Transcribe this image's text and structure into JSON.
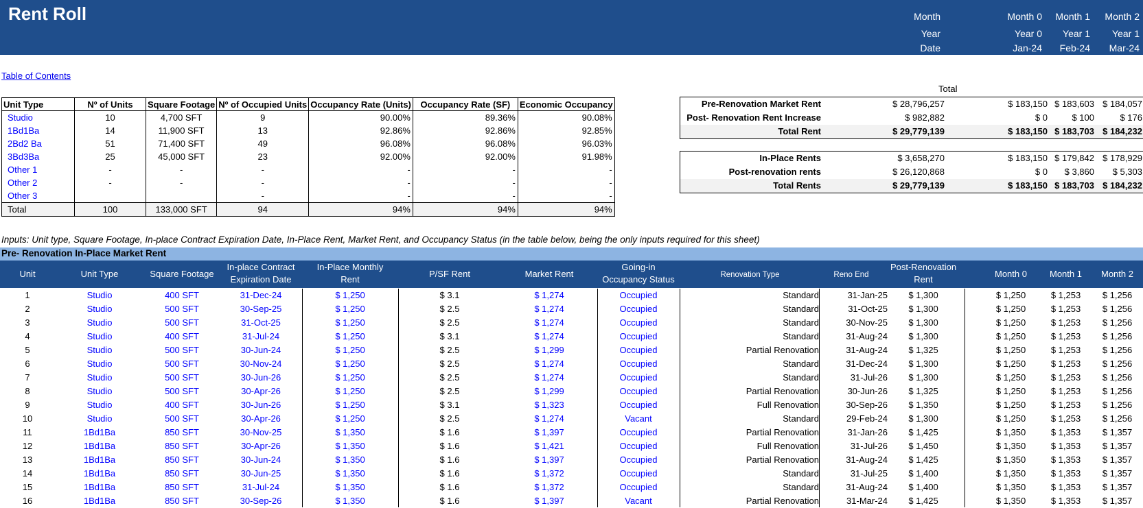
{
  "title": "Rent Roll",
  "header_labels": {
    "month": "Month",
    "year": "Year",
    "date": "Date"
  },
  "header_cols": [
    {
      "month": "Month 0",
      "year": "Year 0",
      "date": "Jan-24"
    },
    {
      "month": "Month 1",
      "year": "Year 1",
      "date": "Feb-24"
    },
    {
      "month": "Month 2",
      "year": "Year 1",
      "date": "Mar-24"
    }
  ],
  "toc_link": "Table of Contents",
  "summary": {
    "headers": [
      "Unit Type",
      "Nº of Units",
      "Square Footage",
      "Nº of Occupied Units",
      "Occupancy Rate (Units)",
      "Occupancy Rate (SF)",
      "Economic Occupancy"
    ],
    "rows": [
      [
        "Studio",
        "10",
        "4,700 SFT",
        "9",
        "90.00%",
        "89.36%",
        "90.08%"
      ],
      [
        "1Bd1Ba",
        "14",
        "11,900 SFT",
        "13",
        "92.86%",
        "92.86%",
        "92.85%"
      ],
      [
        "2Bd2 Ba",
        "51",
        "71,400 SFT",
        "49",
        "96.08%",
        "96.08%",
        "96.03%"
      ],
      [
        "3Bd3Ba",
        "25",
        "45,000 SFT",
        "23",
        "92.00%",
        "92.00%",
        "91.98%"
      ],
      [
        "Other 1",
        "-",
        "-",
        "-",
        "-",
        "-",
        "-"
      ],
      [
        "Other 2",
        "-",
        "-",
        "-",
        "-",
        "-",
        "-"
      ],
      [
        "Other 3",
        "",
        "",
        "-",
        "-",
        "-",
        "-"
      ]
    ],
    "total": [
      "Total",
      "100",
      "133,000 SFT",
      "94",
      "94%",
      "94%",
      "94%"
    ]
  },
  "total_label": "Total",
  "rent_box1": [
    {
      "label": "Pre-Renovation Market Rent",
      "total": "$ 28,796,257",
      "m0": "$ 183,150",
      "m1": "$ 183,603",
      "m2": "$ 184,057"
    },
    {
      "label": "Post- Renovation Rent Increase",
      "total": "$ 982,882",
      "m0": "$ 0",
      "m1": "$ 100",
      "m2": "$ 176"
    },
    {
      "label": "Total Rent",
      "total": "$ 29,779,139",
      "m0": "$ 183,150",
      "m1": "$ 183,703",
      "m2": "$ 184,232"
    }
  ],
  "rent_box2": [
    {
      "label": "In-Place Rents",
      "total": "$ 3,658,270",
      "m0": "$ 183,150",
      "m1": "$ 179,842",
      "m2": "$ 178,929"
    },
    {
      "label": "Post-renovation rents",
      "total": "$ 26,120,868",
      "m0": "$ 0",
      "m1": "$ 3,860",
      "m2": "$ 5,303"
    },
    {
      "label": "Total Rents",
      "total": "$ 29,779,139",
      "m0": "$ 183,150",
      "m1": "$ 183,703",
      "m2": "$ 184,232"
    }
  ],
  "inputs_note": "Inputs: Unit type, Square Footage, In-place Contract Expiration Date, In-Place Rent, Market Rent, and Occupancy Status (in the table below, being the only inputs required for this sheet)",
  "section_title": "Pre- Renovation In-Place Market Rent",
  "main_headers": {
    "unit": "Unit",
    "unit_type": "Unit Type",
    "sqft": "Square Footage",
    "expiry_1": "In-place Contract",
    "expiry_2": "Expiration Date",
    "inplace_1": "In-Place Monthly",
    "inplace_2": "Rent",
    "psf": "P/SF Rent",
    "market": "Market Rent",
    "status_1": "Going-in",
    "status_2": "Occupancy Status",
    "reno_type": "Renovation Type",
    "reno_end": "Reno End",
    "post_1": "Post-Renovation",
    "post_2": "Rent",
    "m0": "Month 0",
    "m1": "Month 1",
    "m2": "Month 2"
  },
  "units": [
    [
      "1",
      "Studio",
      "400 SFT",
      "31-Dec-24",
      "$ 1,250",
      "$ 3.1",
      "$ 1,274",
      "Occupied",
      "Standard",
      "31-Jan-25",
      "$ 1,300",
      "$ 1,250",
      "$ 1,253",
      "$ 1,256"
    ],
    [
      "2",
      "Studio",
      "500 SFT",
      "30-Sep-25",
      "$ 1,250",
      "$ 2.5",
      "$ 1,274",
      "Occupied",
      "Standard",
      "31-Oct-25",
      "$ 1,300",
      "$ 1,250",
      "$ 1,253",
      "$ 1,256"
    ],
    [
      "3",
      "Studio",
      "500 SFT",
      "31-Oct-25",
      "$ 1,250",
      "$ 2.5",
      "$ 1,274",
      "Occupied",
      "Standard",
      "30-Nov-25",
      "$ 1,300",
      "$ 1,250",
      "$ 1,253",
      "$ 1,256"
    ],
    [
      "4",
      "Studio",
      "400 SFT",
      "31-Jul-24",
      "$ 1,250",
      "$ 3.1",
      "$ 1,274",
      "Occupied",
      "Standard",
      "31-Aug-24",
      "$ 1,300",
      "$ 1,250",
      "$ 1,253",
      "$ 1,256"
    ],
    [
      "5",
      "Studio",
      "500 SFT",
      "30-Jun-24",
      "$ 1,250",
      "$ 2.5",
      "$ 1,299",
      "Occupied",
      "Partial Renovation",
      "31-Aug-24",
      "$ 1,325",
      "$ 1,250",
      "$ 1,253",
      "$ 1,256"
    ],
    [
      "6",
      "Studio",
      "500 SFT",
      "30-Nov-24",
      "$ 1,250",
      "$ 2.5",
      "$ 1,274",
      "Occupied",
      "Standard",
      "31-Dec-24",
      "$ 1,300",
      "$ 1,250",
      "$ 1,253",
      "$ 1,256"
    ],
    [
      "7",
      "Studio",
      "500 SFT",
      "30-Jun-26",
      "$ 1,250",
      "$ 2.5",
      "$ 1,274",
      "Occupied",
      "Standard",
      "31-Jul-26",
      "$ 1,300",
      "$ 1,250",
      "$ 1,253",
      "$ 1,256"
    ],
    [
      "8",
      "Studio",
      "500 SFT",
      "30-Apr-26",
      "$ 1,250",
      "$ 2.5",
      "$ 1,299",
      "Occupied",
      "Partial Renovation",
      "30-Jun-26",
      "$ 1,325",
      "$ 1,250",
      "$ 1,253",
      "$ 1,256"
    ],
    [
      "9",
      "Studio",
      "400 SFT",
      "30-Jun-26",
      "$ 1,250",
      "$ 3.1",
      "$ 1,323",
      "Occupied",
      "Full Renovation",
      "30-Sep-26",
      "$ 1,350",
      "$ 1,250",
      "$ 1,253",
      "$ 1,256"
    ],
    [
      "10",
      "Studio",
      "500 SFT",
      "30-Apr-26",
      "$ 1,250",
      "$ 2.5",
      "$ 1,274",
      "Vacant",
      "Standard",
      "29-Feb-24",
      "$ 1,300",
      "$ 1,250",
      "$ 1,253",
      "$ 1,256"
    ],
    [
      "11",
      "1Bd1Ba",
      "850 SFT",
      "30-Nov-25",
      "$ 1,350",
      "$ 1.6",
      "$ 1,397",
      "Occupied",
      "Partial Renovation",
      "31-Jan-26",
      "$ 1,425",
      "$ 1,350",
      "$ 1,353",
      "$ 1,357"
    ],
    [
      "12",
      "1Bd1Ba",
      "850 SFT",
      "30-Apr-26",
      "$ 1,350",
      "$ 1.6",
      "$ 1,421",
      "Occupied",
      "Full Renovation",
      "31-Jul-26",
      "$ 1,450",
      "$ 1,350",
      "$ 1,353",
      "$ 1,357"
    ],
    [
      "13",
      "1Bd1Ba",
      "850 SFT",
      "30-Jun-24",
      "$ 1,350",
      "$ 1.6",
      "$ 1,397",
      "Occupied",
      "Partial Renovation",
      "31-Aug-24",
      "$ 1,425",
      "$ 1,350",
      "$ 1,353",
      "$ 1,357"
    ],
    [
      "14",
      "1Bd1Ba",
      "850 SFT",
      "30-Jun-25",
      "$ 1,350",
      "$ 1.6",
      "$ 1,372",
      "Occupied",
      "Standard",
      "31-Jul-25",
      "$ 1,400",
      "$ 1,350",
      "$ 1,353",
      "$ 1,357"
    ],
    [
      "15",
      "1Bd1Ba",
      "850 SFT",
      "31-Jul-24",
      "$ 1,350",
      "$ 1.6",
      "$ 1,372",
      "Occupied",
      "Standard",
      "31-Aug-24",
      "$ 1,400",
      "$ 1,350",
      "$ 1,353",
      "$ 1,357"
    ],
    [
      "16",
      "1Bd1Ba",
      "850 SFT",
      "30-Sep-26",
      "$ 1,350",
      "$ 1.6",
      "$ 1,397",
      "Vacant",
      "Partial Renovation",
      "31-Mar-24",
      "$ 1,425",
      "$ 1,350",
      "$ 1,353",
      "$ 1,357"
    ]
  ]
}
